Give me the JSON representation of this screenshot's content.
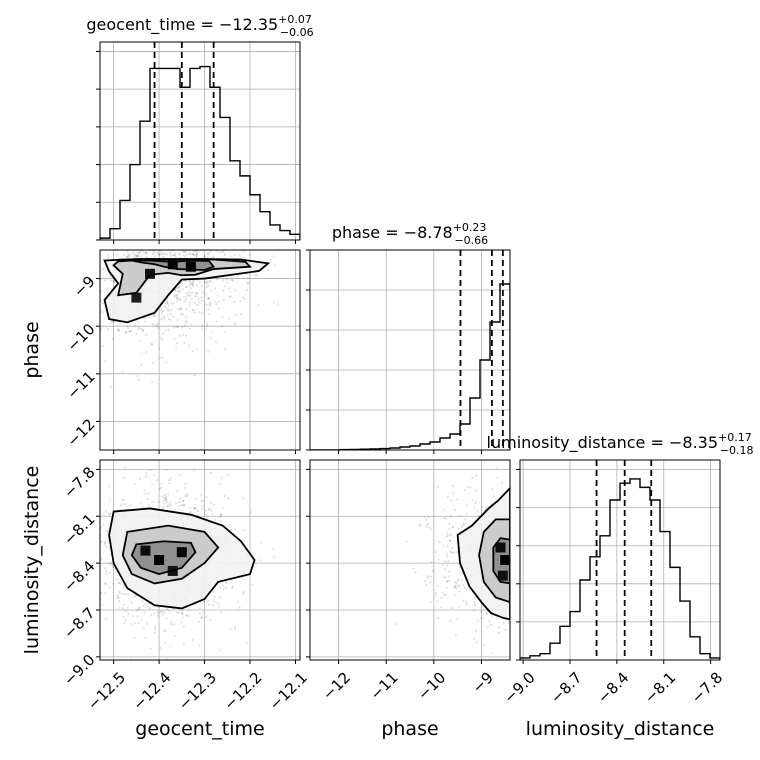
{
  "chart_data": {
    "type": "corner",
    "parameters": [
      {
        "name": "geocent_time",
        "axis_label": "geocent_time",
        "title": {
          "prefix": "geocent_time = ",
          "value": "−12.35",
          "upper": "+0.07",
          "lower": "−0.06"
        },
        "range": [
          -12.53,
          -12.09
        ],
        "ticks": [
          -12.5,
          -12.4,
          -12.3,
          -12.2,
          -12.1
        ],
        "tick_labels": [
          "−12.5",
          "−12.4",
          "−12.3",
          "−12.2",
          "−12.1"
        ],
        "quantiles": [
          -12.41,
          -12.35,
          -12.28
        ],
        "hist": {
          "edges_start": -12.53,
          "bin_width": 0.022,
          "counts": [
            0.1,
            0.6,
            2.1,
            4.0,
            6.3,
            9.1,
            9.1,
            9.1,
            8.1,
            9.1,
            9.2,
            8.1,
            6.5,
            4.2,
            3.4,
            2.4,
            1.5,
            0.8,
            0.5,
            0.3
          ]
        },
        "hist_ylim": [
          0,
          10.5
        ]
      },
      {
        "name": "phase",
        "axis_label": "phase",
        "title": {
          "prefix": "phase = ",
          "value": "−8.78",
          "upper": "+0.23",
          "lower": "−0.66"
        },
        "range": [
          -12.6,
          -8.4
        ],
        "ticks": [
          -12,
          -11,
          -10,
          -9
        ],
        "tick_labels": [
          "−12",
          "−11",
          "−10",
          "−9"
        ],
        "quantiles": [
          -9.44,
          -8.78,
          -8.55
        ],
        "hist": {
          "edges_start": -12.6,
          "bin_width": 0.21,
          "counts": [
            0,
            0,
            0,
            0.02,
            0.03,
            0.04,
            0.05,
            0.07,
            0.1,
            0.15,
            0.2,
            0.3,
            0.4,
            0.6,
            0.8,
            1.3,
            2.6,
            4.5,
            6.4,
            8.3
          ]
        },
        "hist_ylim": [
          0,
          10
        ]
      },
      {
        "name": "luminosity_distance",
        "axis_label": "luminosity_distance",
        "title": {
          "prefix": "luminosity_distance = ",
          "value": "−8.35",
          "upper": "+0.17",
          "lower": "−0.18"
        },
        "range": [
          -9.02,
          -7.74
        ],
        "ticks": [
          -9.0,
          -8.7,
          -8.4,
          -8.1,
          -7.8
        ],
        "tick_labels": [
          "−9.0",
          "−8.7",
          "−8.4",
          "−8.1",
          "−7.8"
        ],
        "quantiles": [
          -8.53,
          -8.35,
          -8.18
        ],
        "hist": {
          "edges_start": -9.02,
          "bin_width": 0.064,
          "counts": [
            0.1,
            0.2,
            0.3,
            0.8,
            1.6,
            2.3,
            3.8,
            4.9,
            5.9,
            7.6,
            8.4,
            8.6,
            8.2,
            7.6,
            6.1,
            4.4,
            2.8,
            1.1,
            0.3,
            0.1
          ]
        },
        "hist_ylim": [
          0,
          9.5
        ]
      }
    ],
    "pairs": [
      {
        "x": "geocent_time",
        "y": "phase",
        "density_peaks": [
          [
            -12.37,
            -8.7,
            0.9
          ],
          [
            -12.33,
            -8.75,
            1.0
          ],
          [
            -12.42,
            -8.9,
            0.7
          ],
          [
            -12.45,
            -9.4,
            0.5
          ]
        ],
        "contours": [
          [
            [
              -12.46,
              -8.62
            ],
            [
              -12.42,
              -8.62
            ],
            [
              -12.37,
              -8.65
            ],
            [
              -12.33,
              -8.62
            ],
            [
              -12.29,
              -8.63
            ],
            [
              -12.28,
              -8.75
            ],
            [
              -12.3,
              -8.82
            ],
            [
              -12.36,
              -8.8
            ],
            [
              -12.39,
              -8.75
            ],
            [
              -12.41,
              -8.7
            ],
            [
              -12.44,
              -8.66
            ]
          ],
          [
            [
              -12.49,
              -8.64
            ],
            [
              -12.43,
              -8.6
            ],
            [
              -12.35,
              -8.6
            ],
            [
              -12.28,
              -8.6
            ],
            [
              -12.21,
              -8.65
            ],
            [
              -12.2,
              -8.75
            ],
            [
              -12.28,
              -8.8
            ],
            [
              -12.32,
              -8.92
            ],
            [
              -12.35,
              -8.93
            ],
            [
              -12.38,
              -8.88
            ],
            [
              -12.42,
              -8.92
            ],
            [
              -12.45,
              -9.3
            ],
            [
              -12.49,
              -9.35
            ],
            [
              -12.48,
              -8.9
            ],
            [
              -12.5,
              -8.72
            ]
          ],
          [
            [
              -12.52,
              -8.62
            ],
            [
              -12.45,
              -8.59
            ],
            [
              -12.38,
              -8.59
            ],
            [
              -12.3,
              -8.59
            ],
            [
              -12.22,
              -8.6
            ],
            [
              -12.16,
              -8.68
            ],
            [
              -12.18,
              -8.84
            ],
            [
              -12.24,
              -8.92
            ],
            [
              -12.3,
              -9.0
            ],
            [
              -12.35,
              -9.02
            ],
            [
              -12.38,
              -9.35
            ],
            [
              -12.41,
              -9.72
            ],
            [
              -12.47,
              -9.92
            ],
            [
              -12.51,
              -9.85
            ],
            [
              -12.52,
              -9.45
            ],
            [
              -12.49,
              -9.1
            ],
            [
              -12.51,
              -8.85
            ]
          ]
        ]
      },
      {
        "x": "geocent_time",
        "y": "luminosity_distance",
        "density_peaks": [
          [
            -12.4,
            -8.38,
            1.0
          ],
          [
            -12.35,
            -8.33,
            0.9
          ],
          [
            -12.43,
            -8.32,
            0.8
          ],
          [
            -12.37,
            -8.45,
            0.7
          ]
        ],
        "contours": [
          [
            [
              -12.45,
              -8.28
            ],
            [
              -12.39,
              -8.26
            ],
            [
              -12.33,
              -8.27
            ],
            [
              -12.32,
              -8.33
            ],
            [
              -12.35,
              -8.43
            ],
            [
              -12.4,
              -8.47
            ],
            [
              -12.44,
              -8.43
            ],
            [
              -12.46,
              -8.35
            ]
          ],
          [
            [
              -12.47,
              -8.2
            ],
            [
              -12.38,
              -8.16
            ],
            [
              -12.3,
              -8.2
            ],
            [
              -12.27,
              -8.3
            ],
            [
              -12.3,
              -8.4
            ],
            [
              -12.35,
              -8.5
            ],
            [
              -12.41,
              -8.53
            ],
            [
              -12.46,
              -8.47
            ],
            [
              -12.48,
              -8.35
            ]
          ],
          [
            [
              -12.5,
              -8.07
            ],
            [
              -12.42,
              -8.05
            ],
            [
              -12.33,
              -8.09
            ],
            [
              -12.26,
              -8.16
            ],
            [
              -12.22,
              -8.26
            ],
            [
              -12.19,
              -8.38
            ],
            [
              -12.2,
              -8.47
            ],
            [
              -12.27,
              -8.52
            ],
            [
              -12.3,
              -8.63
            ],
            [
              -12.35,
              -8.69
            ],
            [
              -12.41,
              -8.67
            ],
            [
              -12.47,
              -8.56
            ],
            [
              -12.5,
              -8.4
            ],
            [
              -12.51,
              -8.22
            ]
          ]
        ]
      },
      {
        "x": "phase",
        "y": "luminosity_distance",
        "density_peaks": [
          [
            -8.5,
            -8.38,
            1.0
          ],
          [
            -8.6,
            -8.3,
            0.8
          ],
          [
            -8.55,
            -8.48,
            0.7
          ]
        ],
        "contours": [
          [
            [
              -8.4,
              -8.25
            ],
            [
              -8.6,
              -8.24
            ],
            [
              -8.75,
              -8.3
            ],
            [
              -8.75,
              -8.45
            ],
            [
              -8.6,
              -8.52
            ],
            [
              -8.4,
              -8.53
            ]
          ],
          [
            [
              -8.4,
              -8.12
            ],
            [
              -8.7,
              -8.12
            ],
            [
              -8.95,
              -8.2
            ],
            [
              -9.05,
              -8.35
            ],
            [
              -8.95,
              -8.52
            ],
            [
              -8.7,
              -8.62
            ],
            [
              -8.4,
              -8.65
            ]
          ],
          [
            [
              -8.4,
              -7.92
            ],
            [
              -8.65,
              -8.0
            ],
            [
              -8.85,
              -8.05
            ],
            [
              -9.2,
              -8.16
            ],
            [
              -9.5,
              -8.22
            ],
            [
              -9.45,
              -8.4
            ],
            [
              -9.25,
              -8.55
            ],
            [
              -9.0,
              -8.65
            ],
            [
              -8.8,
              -8.72
            ],
            [
              -8.55,
              -8.75
            ],
            [
              -8.4,
              -8.76
            ]
          ]
        ]
      }
    ],
    "samples_shown": true,
    "grid": true
  }
}
